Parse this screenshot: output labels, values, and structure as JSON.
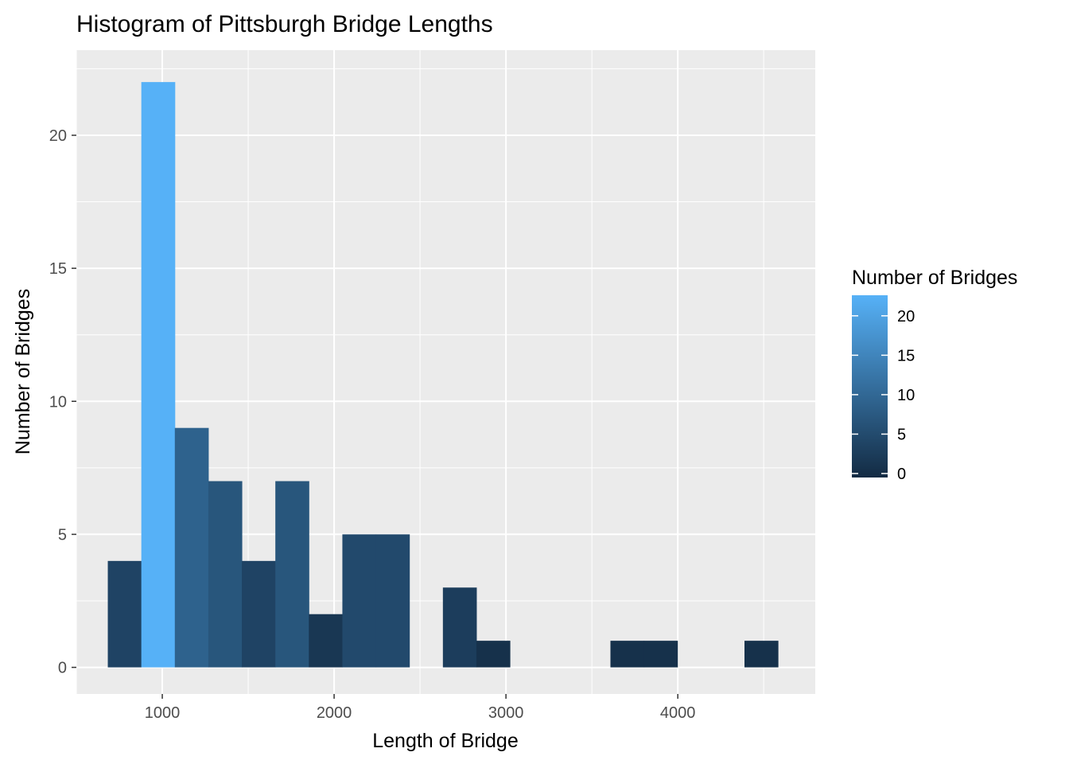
{
  "chart_data": {
    "type": "bar",
    "title": "Histogram of Pittsburgh Bridge Lengths",
    "xlabel": "Length of Bridge",
    "ylabel": "Number of Bridges",
    "xlim": [
      500,
      4800
    ],
    "ylim": [
      -1.0,
      23.2
    ],
    "bin_width": 195,
    "x_ticks": [
      1000,
      2000,
      3000,
      4000
    ],
    "y_ticks": [
      0,
      5,
      10,
      15,
      20
    ],
    "bins": [
      {
        "x0": 683,
        "x1": 878,
        "count": 4
      },
      {
        "x0": 878,
        "x1": 1073,
        "count": 22
      },
      {
        "x0": 1073,
        "x1": 1268,
        "count": 9
      },
      {
        "x0": 1268,
        "x1": 1463,
        "count": 7
      },
      {
        "x0": 1463,
        "x1": 1658,
        "count": 4
      },
      {
        "x0": 1658,
        "x1": 1853,
        "count": 7
      },
      {
        "x0": 1853,
        "x1": 2048,
        "count": 2
      },
      {
        "x0": 2048,
        "x1": 2243,
        "count": 5
      },
      {
        "x0": 2243,
        "x1": 2438,
        "count": 5
      },
      {
        "x0": 2438,
        "x1": 2633,
        "count": 0
      },
      {
        "x0": 2633,
        "x1": 2828,
        "count": 3
      },
      {
        "x0": 2828,
        "x1": 3023,
        "count": 1
      },
      {
        "x0": 3023,
        "x1": 3218,
        "count": 0
      },
      {
        "x0": 3218,
        "x1": 3413,
        "count": 0
      },
      {
        "x0": 3413,
        "x1": 3608,
        "count": 0
      },
      {
        "x0": 3608,
        "x1": 3803,
        "count": 1
      },
      {
        "x0": 3803,
        "x1": 3998,
        "count": 1
      },
      {
        "x0": 3998,
        "x1": 4193,
        "count": 0
      },
      {
        "x0": 4193,
        "x1": 4388,
        "count": 0
      },
      {
        "x0": 4388,
        "x1": 4583,
        "count": 1
      }
    ],
    "grid": true,
    "legend": {
      "title": "Number of Bridges",
      "placement": "right",
      "range": [
        0,
        22
      ],
      "ticks": [
        0,
        5,
        10,
        15,
        20
      ],
      "low_color": "#132B43",
      "high_color": "#56B1F7"
    },
    "panel_color": "#EBEBEB",
    "grid_color": "#FFFFFF"
  }
}
